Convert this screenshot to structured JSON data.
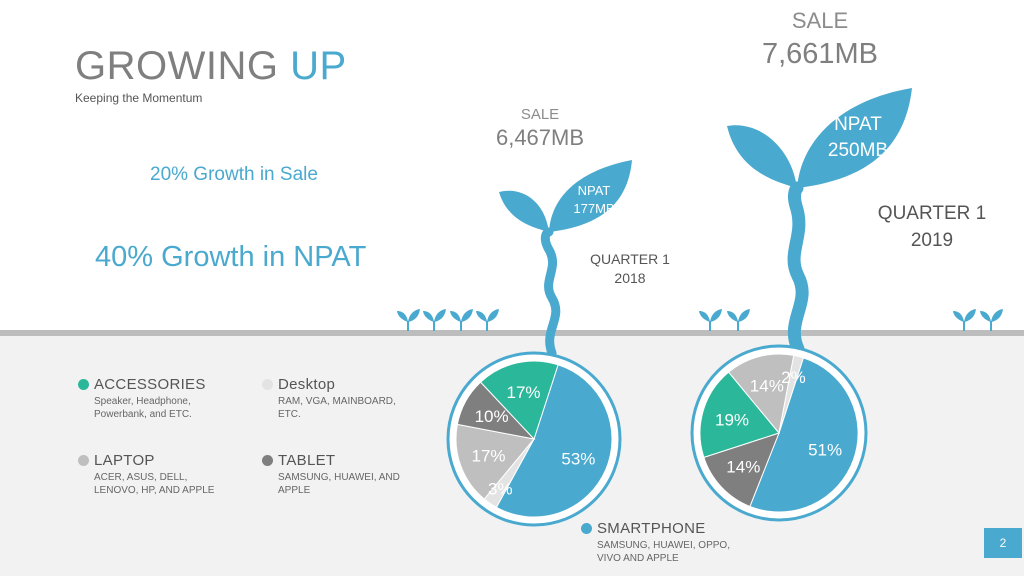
{
  "header": {
    "title_part1": "GROWING",
    "title_part2": "UP",
    "subtitle": "Keeping the Momentum"
  },
  "highlights": {
    "sale_growth": "20% Growth in Sale",
    "npat_growth": "40% Growth in NPAT"
  },
  "plant_2018": {
    "sale_label": "SALE",
    "sale_value": "6,467MB",
    "npat_label": "NPAT",
    "npat_value": "177MB",
    "quarter": "QUARTER 1",
    "year": "2018"
  },
  "plant_2019": {
    "sale_label": "SALE",
    "sale_value": "7,661MB",
    "npat_label": "NPAT",
    "npat_value": "250MB",
    "quarter": "QUARTER 1",
    "year": "2019"
  },
  "legend": {
    "accessories": {
      "title": "ACCESSORIES",
      "desc1": "Speaker, Headphone,",
      "desc2": "Powerbank, and ETC."
    },
    "desktop": {
      "title": "Desktop",
      "desc1": "RAM, VGA, MAINBOARD,",
      "desc2": "ETC."
    },
    "laptop": {
      "title": "LAPTOP",
      "desc1": "ACER, ASUS, DELL,",
      "desc2": "LENOVO, HP, AND APPLE"
    },
    "tablet": {
      "title": "TABLET",
      "desc1": "SAMSUNG, HUAWEI, AND",
      "desc2": "APPLE"
    },
    "smartphone": {
      "title": "SMARTPHONE",
      "desc1": "SAMSUNG, HUAWEI, OPPO,",
      "desc2": "VIVO AND APPLE"
    }
  },
  "page_number": "2",
  "colors": {
    "smartphone": "#4aa9cf",
    "accessories": "#2bb799",
    "tablet": "#7f7f7f",
    "laptop": "#bfbfbf",
    "desktop": "#e3e3e3",
    "plant": "#4aa9cf"
  },
  "chart_data": [
    {
      "type": "pie",
      "title": "QUARTER 1 2018",
      "categories": [
        "SMARTPHONE",
        "Desktop",
        "LAPTOP",
        "TABLET",
        "ACCESSORIES"
      ],
      "values": [
        53,
        3,
        17,
        10,
        17
      ],
      "labels": [
        "53%",
        "3%",
        "17%",
        "10%",
        "17%"
      ]
    },
    {
      "type": "pie",
      "title": "QUARTER 1 2019",
      "categories": [
        "SMARTPHONE",
        "TABLET",
        "ACCESSORIES",
        "LAPTOP",
        "Desktop"
      ],
      "values": [
        51,
        14,
        19,
        14,
        2
      ],
      "labels": [
        "51%",
        "14%",
        "19%",
        "14%",
        "2%"
      ]
    }
  ]
}
